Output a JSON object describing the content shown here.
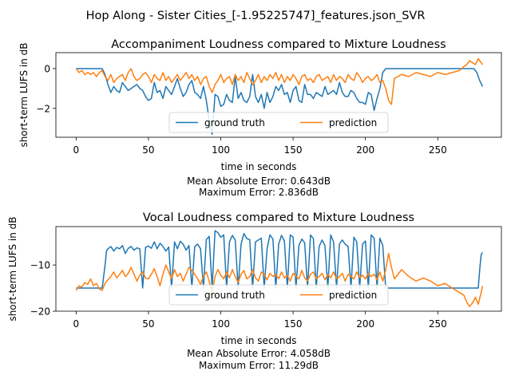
{
  "figure": {
    "suptitle": "Hop Along - Sister Cities_[-1.95225747]_features.json_SVR"
  },
  "colors": {
    "ground_truth": "#1f77b4",
    "prediction": "#ff7f0e"
  },
  "chart_data": [
    {
      "type": "line",
      "title": "Accompaniment Loudness compared to Mixture Loudness",
      "xlabel": "time in seconds",
      "ylabel": "short-term LUFS in dB",
      "error_lines": [
        "Mean Absolute Error: 0.643dB",
        "Maximum Error: 2.836dB"
      ],
      "xlim": [
        -14,
        294
      ],
      "ylim": [
        -3.45,
        0.8
      ],
      "xticks": [
        0,
        50,
        100,
        150,
        200,
        250
      ],
      "yticks": [
        -2,
        0
      ],
      "ytick_labels": [
        "−2",
        "0"
      ],
      "legend": "lower-center",
      "grid": false,
      "series": [
        {
          "name": "ground truth",
          "color": "#1f77b4",
          "x": [
            0,
            5,
            10,
            15,
            18,
            20,
            22,
            24,
            26,
            28,
            30,
            32,
            34,
            36,
            38,
            40,
            42,
            44,
            46,
            48,
            50,
            52,
            54,
            56,
            58,
            60,
            62,
            64,
            66,
            68,
            70,
            72,
            74,
            76,
            78,
            80,
            82,
            84,
            86,
            88,
            90,
            92,
            94,
            96,
            98,
            100,
            102,
            104,
            106,
            108,
            110,
            112,
            114,
            116,
            118,
            120,
            122,
            124,
            126,
            128,
            130,
            132,
            134,
            136,
            138,
            140,
            142,
            144,
            146,
            148,
            150,
            152,
            154,
            156,
            158,
            160,
            162,
            164,
            166,
            168,
            170,
            172,
            174,
            176,
            178,
            180,
            182,
            184,
            186,
            188,
            190,
            192,
            194,
            196,
            198,
            200,
            202,
            204,
            206,
            208,
            210,
            212,
            214,
            216,
            220,
            230,
            240,
            250,
            260,
            270,
            275,
            277,
            279,
            281
          ],
          "y": [
            0.0,
            0.0,
            0.0,
            0.0,
            0.0,
            -0.3,
            -0.8,
            -1.2,
            -0.9,
            -1.1,
            -1.2,
            -0.7,
            -0.9,
            -1.1,
            -1.0,
            -0.9,
            -0.8,
            -1.0,
            -1.1,
            -1.4,
            -1.6,
            -1.5,
            -0.7,
            -1.2,
            -1.1,
            -1.5,
            -0.9,
            -1.1,
            -1.3,
            -0.9,
            -0.5,
            -1.0,
            -1.4,
            -1.2,
            -0.8,
            -0.6,
            -1.2,
            -1.3,
            -1.5,
            -0.9,
            -1.6,
            -2.6,
            -3.3,
            -1.3,
            -1.4,
            -1.9,
            -1.8,
            -1.3,
            -1.6,
            -1.7,
            -0.4,
            -1.5,
            -1.2,
            -1.6,
            -1.7,
            -1.4,
            -0.3,
            -1.4,
            -1.7,
            -1.3,
            -2.0,
            -1.2,
            -1.7,
            -1.4,
            -0.9,
            -1.1,
            -0.8,
            -1.3,
            -1.2,
            -1.7,
            -1.1,
            -0.9,
            -1.6,
            -1.7,
            -0.8,
            -1.3,
            -1.3,
            -1.5,
            -1.2,
            -1.3,
            -1.4,
            -0.9,
            -1.3,
            -1.2,
            -1.1,
            -1.3,
            -0.7,
            -1.2,
            -1.4,
            -1.4,
            -1.1,
            -1.2,
            -1.5,
            -1.7,
            -1.7,
            -1.8,
            -1.2,
            -1.3,
            -2.1,
            -1.5,
            -1.0,
            -0.2,
            0.0,
            0.0,
            0.0,
            0.0,
            0.0,
            0.0,
            0.0,
            0.0,
            0.0,
            -0.2,
            -0.6,
            -0.9
          ]
        },
        {
          "name": "prediction",
          "color": "#ff7f0e",
          "x": [
            0,
            2,
            4,
            6,
            8,
            10,
            12,
            14,
            16,
            18,
            20,
            22,
            24,
            26,
            28,
            30,
            32,
            34,
            36,
            38,
            40,
            42,
            44,
            46,
            48,
            50,
            52,
            54,
            56,
            58,
            60,
            62,
            64,
            66,
            68,
            70,
            72,
            74,
            76,
            78,
            80,
            82,
            84,
            86,
            88,
            90,
            92,
            94,
            96,
            98,
            100,
            102,
            104,
            106,
            108,
            110,
            112,
            114,
            116,
            118,
            120,
            122,
            124,
            126,
            128,
            130,
            132,
            134,
            136,
            138,
            140,
            142,
            144,
            146,
            148,
            150,
            152,
            154,
            156,
            158,
            160,
            162,
            164,
            166,
            168,
            170,
            172,
            174,
            176,
            178,
            180,
            182,
            184,
            186,
            188,
            190,
            192,
            194,
            196,
            198,
            200,
            202,
            204,
            206,
            208,
            210,
            212,
            214,
            216,
            218,
            220,
            225,
            230,
            235,
            240,
            245,
            250,
            255,
            260,
            265,
            268,
            270,
            272,
            274,
            276,
            278,
            280,
            281
          ],
          "y": [
            0.0,
            -0.2,
            -0.1,
            -0.3,
            -0.2,
            -0.3,
            -0.2,
            -0.4,
            -0.2,
            -0.1,
            -0.4,
            -0.6,
            -0.3,
            -0.7,
            -0.5,
            -0.4,
            -0.3,
            -0.6,
            -0.2,
            0.0,
            -0.4,
            -0.6,
            -0.5,
            -0.3,
            -0.2,
            -0.4,
            -0.7,
            -0.3,
            -0.5,
            -0.6,
            -0.2,
            -0.6,
            -0.4,
            -0.7,
            -0.5,
            -0.3,
            -0.6,
            -0.4,
            -0.2,
            -0.5,
            -0.3,
            -0.6,
            -0.4,
            -0.8,
            -0.5,
            -0.4,
            -0.9,
            -1.2,
            -0.8,
            -0.6,
            -0.3,
            -0.7,
            -0.5,
            -0.4,
            -0.8,
            -0.3,
            -0.6,
            -0.4,
            -0.7,
            -0.2,
            -0.5,
            -0.8,
            -0.6,
            -0.3,
            -0.7,
            -0.4,
            -0.6,
            -0.3,
            -0.5,
            -0.2,
            -0.6,
            -0.3,
            -0.7,
            -0.4,
            -0.6,
            -0.3,
            -0.5,
            -0.8,
            -0.4,
            -0.3,
            -0.6,
            -0.5,
            -0.7,
            -0.4,
            -0.3,
            -0.6,
            -0.5,
            -0.4,
            -0.7,
            -0.3,
            -0.6,
            -0.4,
            -0.5,
            -0.7,
            -0.3,
            -0.5,
            -0.6,
            -0.2,
            -0.4,
            -0.7,
            -0.5,
            -0.4,
            -0.6,
            -0.5,
            -0.3,
            -0.7,
            -0.6,
            -1.0,
            -1.6,
            -1.8,
            -0.5,
            -0.3,
            -0.4,
            -0.2,
            -0.3,
            -0.4,
            -0.2,
            -0.3,
            -0.2,
            -0.1,
            0.1,
            0.2,
            0.4,
            0.3,
            0.2,
            0.5,
            0.3,
            0.2
          ]
        }
      ]
    },
    {
      "type": "line",
      "title": "Vocal Loudness compared to Mixture Loudness",
      "xlabel": "time in seconds",
      "ylabel": "short-term LUFS in dB",
      "error_lines": [
        "Mean Absolute Error: 4.058dB",
        "Maximum Error: 11.29dB"
      ],
      "xlim": [
        -14,
        294
      ],
      "ylim": [
        -20,
        -1.7
      ],
      "xticks": [
        0,
        50,
        100,
        150,
        200,
        250
      ],
      "yticks": [
        -20,
        -10
      ],
      "ytick_labels": [
        "−20",
        "−10"
      ],
      "legend": "lower-center",
      "grid": false,
      "series": [
        {
          "name": "ground truth",
          "color": "#1f77b4",
          "x": [
            0,
            5,
            10,
            15,
            18,
            20,
            21,
            22,
            24,
            26,
            28,
            30,
            32,
            34,
            36,
            38,
            40,
            42,
            44,
            46,
            48,
            50,
            52,
            54,
            56,
            58,
            60,
            62,
            64,
            66,
            68,
            70,
            72,
            74,
            76,
            78,
            80,
            82,
            84,
            86,
            88,
            90,
            92,
            94,
            96,
            98,
            100,
            102,
            104,
            106,
            108,
            110,
            112,
            114,
            116,
            118,
            120,
            122,
            124,
            126,
            128,
            130,
            132,
            134,
            136,
            138,
            140,
            142,
            144,
            146,
            148,
            150,
            152,
            154,
            156,
            158,
            160,
            162,
            164,
            166,
            168,
            170,
            172,
            174,
            176,
            178,
            180,
            182,
            184,
            186,
            188,
            190,
            192,
            194,
            196,
            198,
            200,
            202,
            204,
            206,
            208,
            210,
            212,
            214,
            216,
            220,
            230,
            240,
            250,
            260,
            270,
            278,
            279,
            280,
            281
          ],
          "y": [
            -15.0,
            -15.0,
            -15.0,
            -15.0,
            -15.0,
            -10.0,
            -7.0,
            -6.5,
            -6.0,
            -7.0,
            -6.2,
            -6.5,
            -5.8,
            -7.5,
            -6.4,
            -6.0,
            -6.8,
            -6.3,
            -6.5,
            -15.0,
            -6.2,
            -5.9,
            -6.4,
            -5.0,
            -6.5,
            -5.3,
            -6.0,
            -7.0,
            -6.1,
            -15.0,
            -5.0,
            -6.5,
            -4.9,
            -5.5,
            -6.8,
            -5.8,
            -15.0,
            -6.0,
            -5.5,
            -6.5,
            -15.0,
            -4.5,
            -3.8,
            -15.0,
            -2.6,
            -3.0,
            -4.0,
            -3.5,
            -15.0,
            -5.0,
            -3.6,
            -4.6,
            -15.0,
            -5.5,
            -3.2,
            -4.3,
            -4.5,
            -15.0,
            -5.0,
            -4.6,
            -4.2,
            -15.0,
            -6.5,
            -3.5,
            -4.4,
            -15.0,
            -5.5,
            -3.6,
            -4.8,
            -15.0,
            -3.5,
            -4.0,
            -15.0,
            -5.8,
            -4.4,
            -5.2,
            -15.0,
            -3.5,
            -4.3,
            -15.0,
            -6.0,
            -4.6,
            -5.8,
            -15.0,
            -3.5,
            -5.0,
            -15.0,
            -5.5,
            -4.6,
            -5.5,
            -6.0,
            -15.0,
            -4.0,
            -5.0,
            -15.0,
            -5.5,
            -4.8,
            -15.0,
            -3.5,
            -4.2,
            -15.0,
            -4.2,
            -5.8,
            -15.0,
            -15.0,
            -15.0,
            -15.0,
            -15.0,
            -15.0,
            -15.0,
            -15.0,
            -15.0,
            -11.0,
            -7.8,
            -7.3
          ]
        },
        {
          "name": "prediction",
          "color": "#ff7f0e",
          "x": [
            0,
            2,
            4,
            6,
            8,
            10,
            12,
            14,
            16,
            18,
            20,
            22,
            24,
            26,
            28,
            30,
            32,
            34,
            36,
            38,
            40,
            42,
            44,
            46,
            48,
            50,
            52,
            54,
            56,
            58,
            60,
            62,
            64,
            66,
            68,
            70,
            72,
            74,
            76,
            78,
            80,
            82,
            84,
            86,
            88,
            90,
            92,
            94,
            96,
            98,
            100,
            102,
            104,
            106,
            108,
            110,
            112,
            114,
            116,
            118,
            120,
            122,
            124,
            126,
            128,
            130,
            132,
            134,
            136,
            138,
            140,
            142,
            144,
            146,
            148,
            150,
            152,
            154,
            156,
            158,
            160,
            162,
            164,
            166,
            168,
            170,
            172,
            174,
            176,
            178,
            180,
            182,
            184,
            186,
            188,
            190,
            192,
            194,
            196,
            198,
            200,
            202,
            204,
            206,
            208,
            210,
            212,
            214,
            216,
            218,
            220,
            225,
            230,
            235,
            240,
            245,
            250,
            255,
            260,
            265,
            268,
            270,
            272,
            274,
            276,
            278,
            280,
            281
          ],
          "y": [
            -15.5,
            -14.5,
            -14.8,
            -13.8,
            -14.2,
            -13.0,
            -14.5,
            -14.0,
            -15.2,
            -15.5,
            -14.0,
            -13.2,
            -12.5,
            -11.5,
            -12.8,
            -12.0,
            -11.2,
            -12.5,
            -11.8,
            -10.5,
            -12.0,
            -13.5,
            -12.2,
            -11.5,
            -12.8,
            -13.0,
            -12.0,
            -10.8,
            -12.5,
            -14.5,
            -12.0,
            -10.0,
            -11.5,
            -13.0,
            -11.0,
            -12.5,
            -11.8,
            -13.5,
            -12.0,
            -10.5,
            -11.2,
            -12.0,
            -13.0,
            -14.2,
            -12.5,
            -11.5,
            -13.5,
            -16.0,
            -12.5,
            -11.0,
            -12.2,
            -13.0,
            -11.5,
            -12.8,
            -11.0,
            -12.5,
            -13.8,
            -12.0,
            -11.2,
            -13.0,
            -12.5,
            -11.0,
            -12.8,
            -13.5,
            -11.5,
            -12.0,
            -13.2,
            -11.8,
            -12.5,
            -12.0,
            -13.0,
            -11.5,
            -12.8,
            -12.2,
            -13.5,
            -11.8,
            -12.5,
            -13.0,
            -11.2,
            -12.8,
            -13.5,
            -12.0,
            -11.5,
            -13.0,
            -12.5,
            -11.8,
            -13.2,
            -12.0,
            -12.8,
            -11.5,
            -13.0,
            -12.5,
            -11.8,
            -13.5,
            -12.0,
            -12.5,
            -13.0,
            -11.5,
            -12.8,
            -12.2,
            -13.0,
            -11.8,
            -12.5,
            -12.0,
            -13.2,
            -11.5,
            -13.5,
            -11.0,
            -7.5,
            -10.5,
            -13.0,
            -11.0,
            -12.5,
            -13.5,
            -12.8,
            -13.5,
            -14.5,
            -14.0,
            -15.0,
            -16.0,
            -16.5,
            -18.0,
            -19.0,
            -18.2,
            -17.0,
            -18.5,
            -16.0,
            -14.5
          ]
        }
      ]
    }
  ]
}
